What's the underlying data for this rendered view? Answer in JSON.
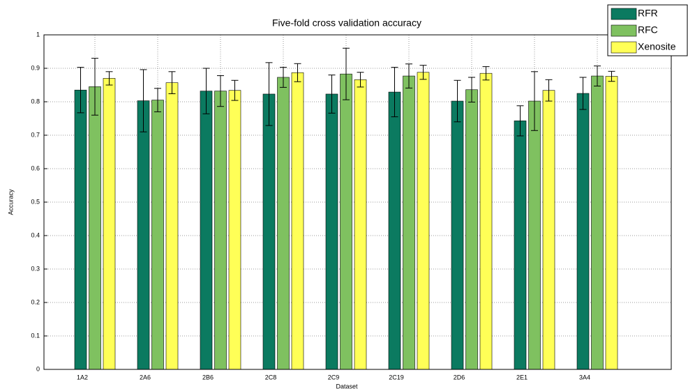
{
  "chart_data": {
    "type": "bar",
    "title": "Five-fold cross validation accuracy",
    "xlabel": "Dataset",
    "ylabel": "Accuracy",
    "categories": [
      "1A2",
      "2A6",
      "2B6",
      "2C8",
      "2C9",
      "2C19",
      "2D6",
      "2E1",
      "3A4"
    ],
    "series": [
      {
        "name": "RFR",
        "color": "#0b7a60",
        "values": [
          0.835,
          0.803,
          0.832,
          0.823,
          0.823,
          0.829,
          0.802,
          0.743,
          0.825
        ],
        "errors": [
          0.068,
          0.093,
          0.068,
          0.094,
          0.057,
          0.074,
          0.062,
          0.045,
          0.048
        ]
      },
      {
        "name": "RFC",
        "color": "#7fc160",
        "values": [
          0.845,
          0.805,
          0.832,
          0.873,
          0.883,
          0.877,
          0.836,
          0.802,
          0.877
        ],
        "errors": [
          0.085,
          0.035,
          0.046,
          0.03,
          0.077,
          0.036,
          0.037,
          0.088,
          0.03
        ]
      },
      {
        "name": "Xenosite",
        "color": "#ffff57",
        "values": [
          0.87,
          0.857,
          0.834,
          0.887,
          0.866,
          0.888,
          0.885,
          0.834,
          0.876
        ],
        "errors": [
          0.02,
          0.033,
          0.03,
          0.027,
          0.022,
          0.021,
          0.02,
          0.032,
          0.015
        ]
      }
    ],
    "ylim": [
      0,
      1
    ],
    "yticks": [
      0,
      0.1,
      0.2,
      0.3,
      0.4,
      0.5,
      0.6,
      0.7,
      0.8,
      0.9,
      1
    ],
    "grid": true,
    "legend": "top-right"
  }
}
